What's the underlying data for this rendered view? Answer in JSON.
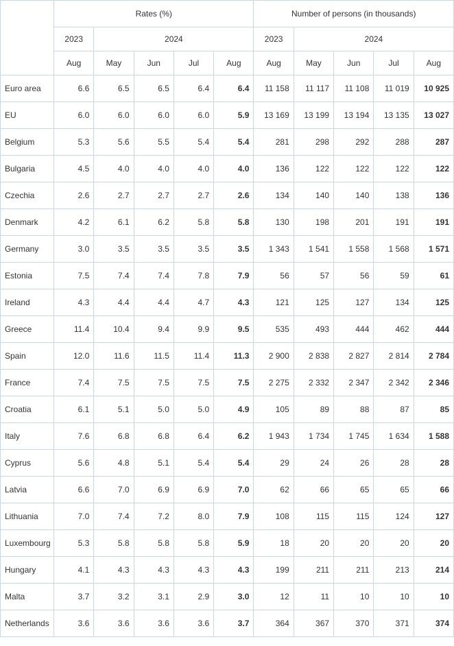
{
  "table": {
    "border_color": "#c8d7e6",
    "background_color": "#ffffff",
    "text_color": "#333333",
    "font_size": 12,
    "header_groups": [
      "Rates (%)",
      "Number of persons (in thousands)"
    ],
    "header_years": [
      "2023",
      "2024",
      "2023",
      "2024"
    ],
    "header_months": [
      "Aug",
      "May",
      "Jun",
      "Jul",
      "Aug",
      "Aug",
      "May",
      "Jun",
      "Jul",
      "Aug"
    ],
    "rows": [
      {
        "label": "Euro area",
        "values": [
          "6.6",
          "6.5",
          "6.5",
          "6.4",
          "6.4",
          "11 158",
          "11 117",
          "11 108",
          "11 019",
          "10 925"
        ]
      },
      {
        "label": "EU",
        "values": [
          "6.0",
          "6.0",
          "6.0",
          "6.0",
          "5.9",
          "13 169",
          "13 199",
          "13 194",
          "13 135",
          "13 027"
        ]
      },
      {
        "label": "Belgium",
        "values": [
          "5.3",
          "5.6",
          "5.5",
          "5.4",
          "5.4",
          "281",
          "298",
          "292",
          "288",
          "287"
        ]
      },
      {
        "label": "Bulgaria",
        "values": [
          "4.5",
          "4.0",
          "4.0",
          "4.0",
          "4.0",
          "136",
          "122",
          "122",
          "122",
          "122"
        ]
      },
      {
        "label": "Czechia",
        "values": [
          "2.6",
          "2.7",
          "2.7",
          "2.7",
          "2.6",
          "134",
          "140",
          "140",
          "138",
          "136"
        ]
      },
      {
        "label": "Denmark",
        "values": [
          "4.2",
          "6.1",
          "6.2",
          "5.8",
          "5.8",
          "130",
          "198",
          "201",
          "191",
          "191"
        ]
      },
      {
        "label": "Germany",
        "values": [
          "3.0",
          "3.5",
          "3.5",
          "3.5",
          "3.5",
          "1 343",
          "1 541",
          "1 558",
          "1 568",
          "1 571"
        ]
      },
      {
        "label": "Estonia",
        "values": [
          "7.5",
          "7.4",
          "7.4",
          "7.8",
          "7.9",
          "56",
          "57",
          "56",
          "59",
          "61"
        ]
      },
      {
        "label": "Ireland",
        "values": [
          "4.3",
          "4.4",
          "4.4",
          "4.7",
          "4.3",
          "121",
          "125",
          "127",
          "134",
          "125"
        ]
      },
      {
        "label": "Greece",
        "values": [
          "11.4",
          "10.4",
          "9.4",
          "9.9",
          "9.5",
          "535",
          "493",
          "444",
          "462",
          "444"
        ]
      },
      {
        "label": "Spain",
        "values": [
          "12.0",
          "11.6",
          "11.5",
          "11.4",
          "11.3",
          "2 900",
          "2 838",
          "2 827",
          "2 814",
          "2 784"
        ]
      },
      {
        "label": "France",
        "values": [
          "7.4",
          "7.5",
          "7.5",
          "7.5",
          "7.5",
          "2 275",
          "2 332",
          "2 347",
          "2 342",
          "2 346"
        ]
      },
      {
        "label": "Croatia",
        "values": [
          "6.1",
          "5.1",
          "5.0",
          "5.0",
          "4.9",
          "105",
          "89",
          "88",
          "87",
          "85"
        ]
      },
      {
        "label": "Italy",
        "values": [
          "7.6",
          "6.8",
          "6.8",
          "6.4",
          "6.2",
          "1 943",
          "1 734",
          "1 745",
          "1 634",
          "1 588"
        ]
      },
      {
        "label": "Cyprus",
        "values": [
          "5.6",
          "4.8",
          "5.1",
          "5.4",
          "5.4",
          "29",
          "24",
          "26",
          "28",
          "28"
        ]
      },
      {
        "label": "Latvia",
        "values": [
          "6.6",
          "7.0",
          "6.9",
          "6.9",
          "7.0",
          "62",
          "66",
          "65",
          "65",
          "66"
        ]
      },
      {
        "label": "Lithuania",
        "values": [
          "7.0",
          "7.4",
          "7.2",
          "8.0",
          "7.9",
          "108",
          "115",
          "115",
          "124",
          "127"
        ]
      },
      {
        "label": "Luxembourg",
        "values": [
          "5.3",
          "5.8",
          "5.8",
          "5.8",
          "5.9",
          "18",
          "20",
          "20",
          "20",
          "20"
        ]
      },
      {
        "label": "Hungary",
        "values": [
          "4.1",
          "4.3",
          "4.3",
          "4.3",
          "4.3",
          "199",
          "211",
          "211",
          "213",
          "214"
        ]
      },
      {
        "label": "Malta",
        "values": [
          "3.7",
          "3.2",
          "3.1",
          "2.9",
          "3.0",
          "12",
          "11",
          "10",
          "10",
          "10"
        ]
      },
      {
        "label": "Netherlands",
        "values": [
          "3.6",
          "3.6",
          "3.6",
          "3.6",
          "3.7",
          "364",
          "367",
          "370",
          "371",
          "374"
        ]
      }
    ],
    "bold_columns": [
      4,
      9
    ]
  }
}
